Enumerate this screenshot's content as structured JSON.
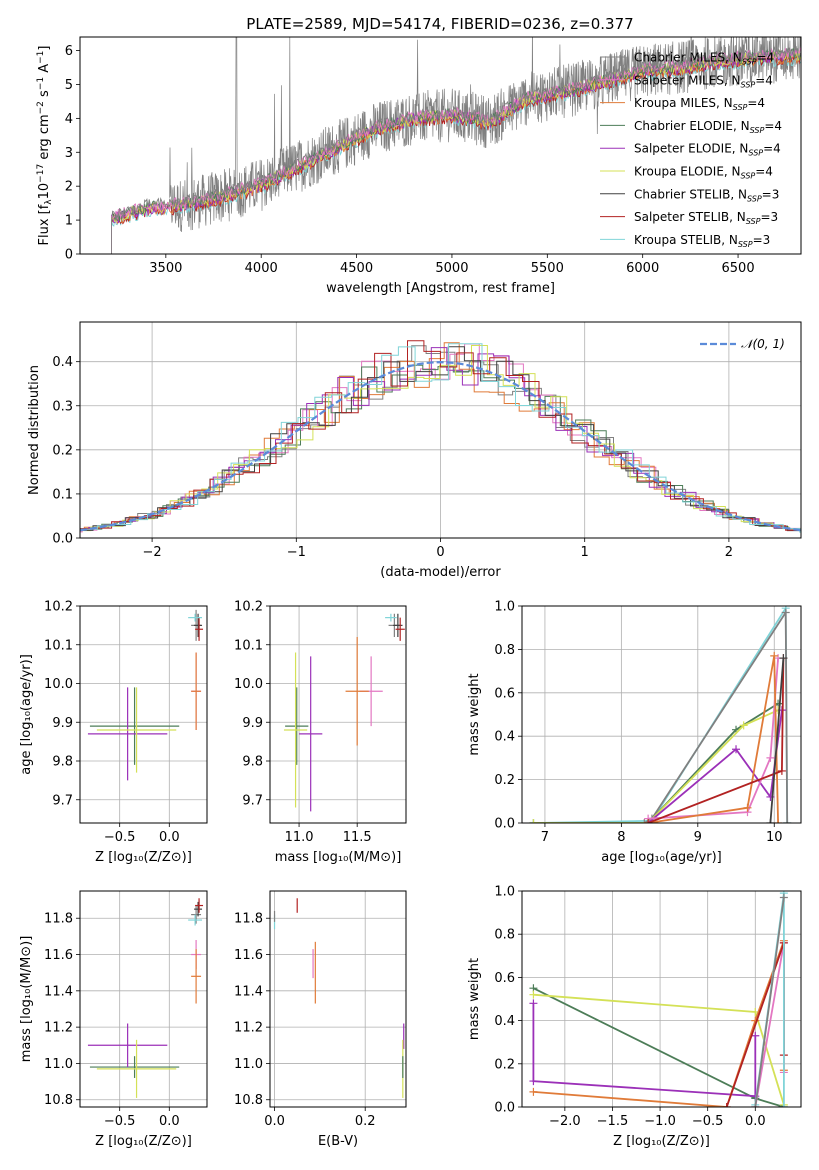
{
  "figure_title": "PLATE=2589, MJD=54174, FIBERID=0236, z=0.377",
  "series": [
    {
      "label": "Chabrier MILES, N",
      "sub": "SSP",
      "tail": "=4",
      "color": "#808080"
    },
    {
      "label": "Salpeter MILES, N",
      "sub": "SSP",
      "tail": "=4",
      "color": "#e377c2"
    },
    {
      "label": "Kroupa MILES, N",
      "sub": "SSP",
      "tail": "=4",
      "color": "#e07b39"
    },
    {
      "label": "Chabrier ELODIE, N",
      "sub": "SSP",
      "tail": "=4",
      "color": "#4d7d58"
    },
    {
      "label": "Salpeter ELODIE, N",
      "sub": "SSP",
      "tail": "=4",
      "color": "#9b30b8"
    },
    {
      "label": "Kroupa ELODIE, N",
      "sub": "SSP",
      "tail": "=4",
      "color": "#d4e157"
    },
    {
      "label": "Chabrier STELIB, N",
      "sub": "SSP",
      "tail": "=3",
      "color": "#404040"
    },
    {
      "label": "Salpeter STELIB, N",
      "sub": "SSP",
      "tail": "=3",
      "color": "#b22222"
    },
    {
      "label": "Kroupa STELIB, N",
      "sub": "SSP",
      "tail": "=3",
      "color": "#80d4d8"
    }
  ],
  "chart_data": [
    {
      "id": "spectrum",
      "type": "line",
      "xlabel": "wavelength [Angstrom, rest frame]",
      "ylabel_parts": [
        "Flux [f",
        "λ",
        "10",
        "−17",
        " erg cm",
        "−2",
        " s",
        "−1",
        " A",
        "−1",
        "]"
      ],
      "xlim": [
        3050,
        6830
      ],
      "ylim": [
        0,
        6.4
      ],
      "xticks": [
        3500,
        4000,
        4500,
        5000,
        5500,
        6000,
        6500
      ],
      "yticks": [
        0,
        1,
        2,
        3,
        4,
        5,
        6
      ],
      "continuum_x": [
        3215,
        3400,
        3600,
        3800,
        4000,
        4200,
        4400,
        4600,
        4800,
        5000,
        5200,
        5400,
        5600,
        5800,
        6000,
        6200,
        6400,
        6600,
        6800
      ],
      "continuum_y": [
        1.05,
        1.35,
        1.45,
        1.7,
        2.05,
        2.6,
        3.15,
        3.7,
        4.0,
        4.1,
        3.9,
        4.6,
        4.8,
        5.1,
        5.4,
        5.5,
        5.7,
        5.8,
        5.85
      ],
      "data_line_color": "#808080"
    },
    {
      "id": "residuals",
      "type": "line",
      "xlabel": "(data-model)/error",
      "ylabel": "Normed distribution",
      "xlim": [
        -2.5,
        2.5
      ],
      "ylim": [
        0,
        0.49
      ],
      "xticks": [
        -2,
        -1,
        0,
        1,
        2
      ],
      "xtick_labels": [
        "−2",
        "−1",
        "0",
        "1",
        "2"
      ],
      "yticks": [
        0,
        0.1,
        0.2,
        0.3,
        0.4
      ],
      "ytick_labels": [
        "0.0",
        "0.1",
        "0.2",
        "0.3",
        "0.4"
      ],
      "normal_label": "𝒩(0, 1)",
      "normal_color": "#5b8bd9"
    },
    {
      "id": "age-vs-Z",
      "type": "scatter",
      "xlabel": "Z [log₁₀(Z/Z⊙)]",
      "ylabel": "age  [log₁₀(age/yr)]",
      "xlim": [
        -0.9,
        0.38
      ],
      "ylim": [
        9.64,
        10.2
      ],
      "xticks": [
        -0.5,
        0.0
      ],
      "xtick_labels": [
        "−0.5",
        "0.0"
      ],
      "yticks": [
        9.7,
        9.8,
        9.9,
        10.0,
        10.1,
        10.2
      ],
      "ytick_labels": [
        "9.7",
        "9.8",
        "9.9",
        "10.0",
        "10.1",
        "10.2"
      ],
      "points": [
        {
          "s": 0,
          "x": 0.27,
          "y": 10.15,
          "xe": 0.05,
          "ye": 0.04
        },
        {
          "s": 1,
          "x": 0.27,
          "y": 9.98,
          "xe": 0.05,
          "ye": 0.1
        },
        {
          "s": 2,
          "x": 0.27,
          "y": 9.98,
          "xe": 0.05,
          "ye": 0.1
        },
        {
          "s": 3,
          "x": -0.35,
          "y": 9.89,
          "xe": 0.45,
          "ye": 0.1
        },
        {
          "s": 4,
          "x": -0.42,
          "y": 9.87,
          "xe": 0.4,
          "ye": 0.12
        },
        {
          "s": 5,
          "x": -0.33,
          "y": 9.88,
          "xe": 0.4,
          "ye": 0.11
        },
        {
          "s": 6,
          "x": 0.29,
          "y": 10.15,
          "xe": 0.04,
          "ye": 0.03
        },
        {
          "s": 7,
          "x": 0.3,
          "y": 10.14,
          "xe": 0.04,
          "ye": 0.03
        },
        {
          "s": 8,
          "x": 0.26,
          "y": 10.17,
          "xe": 0.07,
          "ye": 0.01
        }
      ]
    },
    {
      "id": "age-vs-mass",
      "type": "scatter",
      "xlabel": "mass [log₁₀(M/M⊙)]",
      "ylabel": "",
      "xlim": [
        10.75,
        11.92
      ],
      "ylim": [
        9.64,
        10.2
      ],
      "xticks": [
        11.0,
        11.5
      ],
      "xtick_labels": [
        "11.0",
        "11.5"
      ],
      "yticks": [
        9.7,
        9.8,
        9.9,
        10.0,
        10.1,
        10.2
      ],
      "ytick_labels": [
        "9.7",
        "9.8",
        "9.9",
        "10.0",
        "10.1",
        "10.2"
      ],
      "points": [
        {
          "s": 0,
          "x": 11.82,
          "y": 10.15,
          "xe": 0.05,
          "ye": 0.03
        },
        {
          "s": 1,
          "x": 11.62,
          "y": 9.98,
          "xe": 0.1,
          "ye": 0.09
        },
        {
          "s": 2,
          "x": 11.5,
          "y": 9.98,
          "xe": 0.1,
          "ye": 0.14
        },
        {
          "s": 3,
          "x": 10.98,
          "y": 9.89,
          "xe": 0.1,
          "ye": 0.1
        },
        {
          "s": 4,
          "x": 11.1,
          "y": 9.87,
          "xe": 0.1,
          "ye": 0.2
        },
        {
          "s": 5,
          "x": 10.97,
          "y": 9.88,
          "xe": 0.1,
          "ye": 0.2
        },
        {
          "s": 6,
          "x": 11.85,
          "y": 10.15,
          "xe": 0.04,
          "ye": 0.03
        },
        {
          "s": 7,
          "x": 11.87,
          "y": 10.14,
          "xe": 0.04,
          "ye": 0.03
        },
        {
          "s": 8,
          "x": 11.79,
          "y": 10.17,
          "xe": 0.05,
          "ye": 0.01
        }
      ]
    },
    {
      "id": "weight-vs-age",
      "type": "line",
      "xlabel": "age  [log₁₀(age/yr)]",
      "ylabel": "mass weight",
      "xlim": [
        6.7,
        10.35
      ],
      "ylim": [
        0,
        1.0
      ],
      "xticks": [
        7,
        8,
        9,
        10
      ],
      "xtick_labels": [
        "7",
        "8",
        "9",
        "10"
      ],
      "yticks": [
        0,
        0.2,
        0.4,
        0.6,
        0.8,
        1.0
      ],
      "ytick_labels": [
        "0.0",
        "0.2",
        "0.4",
        "0.6",
        "0.8",
        "1.0"
      ],
      "lines": [
        {
          "s": 8,
          "x": [
            6.85,
            8.4,
            10.15,
            10.17
          ],
          "y": [
            0.0,
            0.01,
            0.99,
            0.0
          ]
        },
        {
          "s": 0,
          "x": [
            8.3,
            8.4,
            10.15,
            10.17
          ],
          "y": [
            0.0,
            0.02,
            0.97,
            0.0
          ]
        },
        {
          "s": 3,
          "x": [
            6.85,
            8.35,
            9.5,
            10.05
          ],
          "y": [
            0.0,
            0.0,
            0.43,
            0.55
          ]
        },
        {
          "s": 5,
          "x": [
            6.85,
            8.35,
            9.6,
            10.05
          ],
          "y": [
            0.0,
            0.0,
            0.45,
            0.52
          ]
        },
        {
          "s": 4,
          "x": [
            8.35,
            9.5,
            9.95,
            10.1
          ],
          "y": [
            0.0,
            0.34,
            0.12,
            0.52
          ]
        },
        {
          "s": 1,
          "x": [
            8.35,
            9.65,
            9.95,
            10.05
          ],
          "y": [
            0.02,
            0.05,
            0.3,
            0.76
          ]
        },
        {
          "s": 2,
          "x": [
            8.35,
            9.65,
            10.0,
            10.05
          ],
          "y": [
            0.0,
            0.07,
            0.77,
            0.0
          ]
        },
        {
          "s": 7,
          "x": [
            8.35,
            10.1,
            10.12
          ],
          "y": [
            0.0,
            0.24,
            0.76
          ]
        },
        {
          "s": 6,
          "x": [
            9.95,
            10.12
          ],
          "y": [
            0.0,
            0.76
          ]
        }
      ]
    },
    {
      "id": "mass-vs-Z",
      "type": "scatter",
      "xlabel": "Z [log₁₀(Z/Z⊙)]",
      "ylabel": "mass [log₁₀(M/M⊙)]",
      "xlim": [
        -0.9,
        0.38
      ],
      "ylim": [
        10.76,
        11.95
      ],
      "xticks": [
        -0.5,
        0.0
      ],
      "xtick_labels": [
        "−0.5",
        "0.0"
      ],
      "yticks": [
        10.8,
        11.0,
        11.2,
        11.4,
        11.6,
        11.8
      ],
      "ytick_labels": [
        "10.8",
        "11.0",
        "11.2",
        "11.4",
        "11.6",
        "11.8"
      ],
      "points": [
        {
          "s": 0,
          "x": 0.27,
          "y": 11.82,
          "xe": 0.05,
          "ye": 0.05
        },
        {
          "s": 1,
          "x": 0.27,
          "y": 11.6,
          "xe": 0.05,
          "ye": 0.08
        },
        {
          "s": 2,
          "x": 0.27,
          "y": 11.48,
          "xe": 0.05,
          "ye": 0.15
        },
        {
          "s": 3,
          "x": -0.35,
          "y": 10.98,
          "xe": 0.45,
          "ye": 0.06
        },
        {
          "s": 4,
          "x": -0.42,
          "y": 11.1,
          "xe": 0.4,
          "ye": 0.12
        },
        {
          "s": 5,
          "x": -0.33,
          "y": 10.97,
          "xe": 0.4,
          "ye": 0.16
        },
        {
          "s": 6,
          "x": 0.29,
          "y": 11.85,
          "xe": 0.04,
          "ye": 0.04
        },
        {
          "s": 7,
          "x": 0.3,
          "y": 11.87,
          "xe": 0.04,
          "ye": 0.04
        },
        {
          "s": 8,
          "x": 0.26,
          "y": 11.79,
          "xe": 0.07,
          "ye": 0.03
        }
      ]
    },
    {
      "id": "mass-vs-ebv",
      "type": "scatter",
      "xlabel": "E(B-V)",
      "ylabel": "",
      "xlim": [
        -0.01,
        0.29
      ],
      "ylim": [
        10.76,
        11.95
      ],
      "xticks": [
        0.0,
        0.2
      ],
      "xtick_labels": [
        "0.0",
        "0.2"
      ],
      "yticks": [
        10.8,
        11.0,
        11.2,
        11.4,
        11.6,
        11.8
      ],
      "ytick_labels": [
        "10.8",
        "11.0",
        "11.2",
        "11.4",
        "11.6",
        "11.8"
      ],
      "points": [
        {
          "s": 1,
          "x": 0.085,
          "y": 11.55,
          "xe": 0,
          "ye": 0.08
        },
        {
          "s": 2,
          "x": 0.09,
          "y": 11.5,
          "xe": 0,
          "ye": 0.17
        },
        {
          "s": 4,
          "x": 0.285,
          "y": 11.15,
          "xe": 0,
          "ye": 0.07
        },
        {
          "s": 5,
          "x": 0.283,
          "y": 10.97,
          "xe": 0,
          "ye": 0.16
        },
        {
          "s": 3,
          "x": 0.283,
          "y": 10.98,
          "xe": 0,
          "ye": 0.06
        },
        {
          "s": 7,
          "x": 0.05,
          "y": 11.87,
          "xe": 0,
          "ye": 0.04
        },
        {
          "s": 8,
          "x": 0.0,
          "y": 11.78,
          "xe": 0,
          "ye": 0.04
        },
        {
          "s": 0,
          "x": 0.0,
          "y": 11.81,
          "xe": 0,
          "ye": 0.03
        }
      ]
    },
    {
      "id": "weight-vs-Z",
      "type": "line",
      "xlabel": "Z [log₁₀(Z/Z⊙)]",
      "ylabel": "mass weight",
      "xlim": [
        -2.45,
        0.48
      ],
      "ylim": [
        0,
        1.0
      ],
      "xticks": [
        -2.0,
        -1.5,
        -1.0,
        -0.5,
        0.0
      ],
      "xtick_labels": [
        "−2.0",
        "−1.5",
        "−1.0",
        "−0.5",
        "0.0"
      ],
      "yticks": [
        0,
        0.2,
        0.4,
        0.6,
        0.8,
        1.0
      ],
      "ytick_labels": [
        "0.0",
        "0.2",
        "0.4",
        "0.6",
        "0.8",
        "1.0"
      ],
      "lines": [
        {
          "s": 3,
          "x": [
            -2.33,
            0.0,
            0.3
          ],
          "y": [
            0.55,
            0.04,
            0.0
          ]
        },
        {
          "s": 5,
          "x": [
            -2.33,
            0.0,
            0.3
          ],
          "y": [
            0.52,
            0.44,
            0.01
          ]
        },
        {
          "s": 4,
          "x": [
            -2.33,
            -2.33,
            0.0,
            0.0
          ],
          "y": [
            0.48,
            0.12,
            0.05,
            0.33
          ]
        },
        {
          "s": 2,
          "x": [
            -2.33,
            -0.3,
            0.0,
            0.3,
            0.3
          ],
          "y": [
            0.07,
            0.0,
            0.4,
            0.77,
            0.17
          ]
        },
        {
          "s": 1,
          "x": [
            0.0,
            0.3,
            0.3
          ],
          "y": [
            0.0,
            0.76,
            0.16
          ]
        },
        {
          "s": 7,
          "x": [
            -0.3,
            0.3,
            0.3
          ],
          "y": [
            0.0,
            0.76,
            0.24
          ]
        },
        {
          "s": 8,
          "x": [
            0.0,
            0.3,
            0.3
          ],
          "y": [
            0.01,
            0.99,
            0.0
          ]
        },
        {
          "s": 0,
          "x": [
            0.0,
            0.3
          ],
          "y": [
            0.0,
            0.97
          ]
        }
      ]
    }
  ]
}
